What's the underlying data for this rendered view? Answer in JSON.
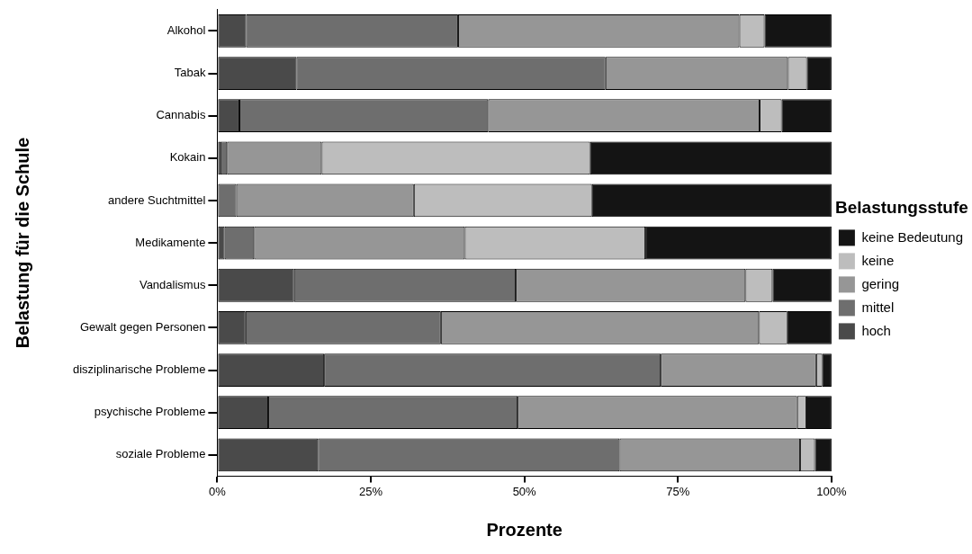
{
  "chart_data": {
    "type": "bar",
    "orientation": "horizontal",
    "stacked": true,
    "xlabel": "Prozente",
    "ylabel": "Belastung für die Schule",
    "legend_title": "Belastungsstufe",
    "legend": "right",
    "grid": false,
    "categories": [
      "Alkohol",
      "Tabak",
      "Cannabis",
      "Kokain",
      "andere Suchtmittel",
      "Medikamente",
      "Vandalismus",
      "Gewalt gegen Personen",
      "disziplinarische Probleme",
      "psychische Probleme",
      "soziale Probleme"
    ],
    "xlim": [
      0,
      100
    ],
    "xticks": [
      {
        "value": 0,
        "label": "0%"
      },
      {
        "value": 25,
        "label": "25%"
      },
      {
        "value": 50,
        "label": "50%"
      },
      {
        "value": 75,
        "label": "75%"
      },
      {
        "value": 100,
        "label": "100%"
      }
    ],
    "series": [
      {
        "name": "hoch",
        "color": "#4a4a4a",
        "values": [
          4.7,
          12.9,
          3.6,
          0.5,
          0,
          1.2,
          12.5,
          4.6,
          17.4,
          8.3,
          16.4
        ]
      },
      {
        "name": "mittel",
        "color": "#6e6e6e",
        "values": [
          34.5,
          50.3,
          40.5,
          1.1,
          3.1,
          4.8,
          36.1,
          31.8,
          54.8,
          40.6,
          49.1
        ]
      },
      {
        "name": "gering",
        "color": "#969696",
        "values": [
          45.8,
          29.7,
          44.2,
          15.4,
          28.9,
          34.3,
          37.4,
          51.8,
          25.3,
          45.5,
          29.4
        ]
      },
      {
        "name": "keine",
        "color": "#bdbdbd",
        "values": [
          4.1,
          3.1,
          3.6,
          43.7,
          29.0,
          29.4,
          4.4,
          4.6,
          1.0,
          1.5,
          2.4
        ]
      },
      {
        "name": "keine Bedeutung",
        "color": "#141414",
        "values": [
          10.9,
          4.0,
          8.1,
          39.3,
          39.0,
          30.3,
          9.6,
          7.2,
          1.5,
          4.1,
          2.7
        ]
      }
    ]
  }
}
